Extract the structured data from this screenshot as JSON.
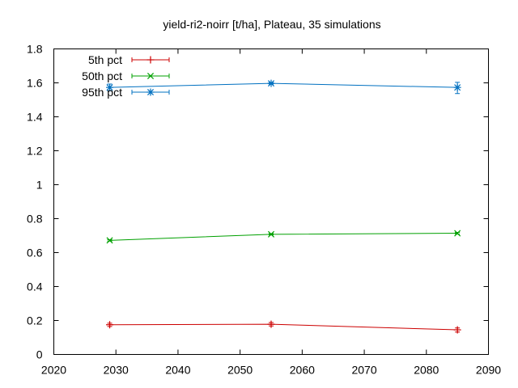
{
  "chart_data": {
    "type": "line",
    "title": "yield-ri2-noirr [t/ha], Plateau, 35 simulations",
    "xlabel": "",
    "ylabel": "",
    "xlim": [
      2020,
      2090
    ],
    "ylim": [
      0,
      1.8
    ],
    "xticks": [
      2020,
      2030,
      2040,
      2050,
      2060,
      2070,
      2080,
      2090
    ],
    "xtick_labels": [
      "2020",
      "2030",
      "2040",
      "2050",
      "2060",
      "2070",
      "2080",
      "2090"
    ],
    "yticks": [
      0,
      0.2,
      0.4,
      0.6,
      0.8,
      1.0,
      1.2,
      1.4,
      1.6,
      1.8
    ],
    "ytick_labels": [
      "0",
      "0.2",
      "0.4",
      "0.6",
      "0.8",
      "1",
      "1.2",
      "1.4",
      "1.6",
      "1.8"
    ],
    "grid": false,
    "legend_position": "top-left",
    "x": [
      2029,
      2055,
      2085
    ],
    "series": [
      {
        "name": "5th pct",
        "color": "#cc0000",
        "marker": "plus",
        "values": [
          0.175,
          0.178,
          0.145
        ],
        "err_low": [
          0.165,
          0.168,
          0.132
        ],
        "err_high": [
          0.184,
          0.188,
          0.156
        ]
      },
      {
        "name": "50th pct",
        "color": "#00a000",
        "marker": "cross",
        "values": [
          0.672,
          0.708,
          0.714
        ],
        "err_low": [
          0.668,
          0.704,
          0.709
        ],
        "err_high": [
          0.676,
          0.712,
          0.719
        ]
      },
      {
        "name": "95th pct",
        "color": "#0070c0",
        "marker": "star",
        "values": [
          1.573,
          1.597,
          1.573
        ],
        "err_low": [
          1.553,
          1.592,
          1.537
        ],
        "err_high": [
          1.593,
          1.602,
          1.603
        ]
      }
    ]
  }
}
